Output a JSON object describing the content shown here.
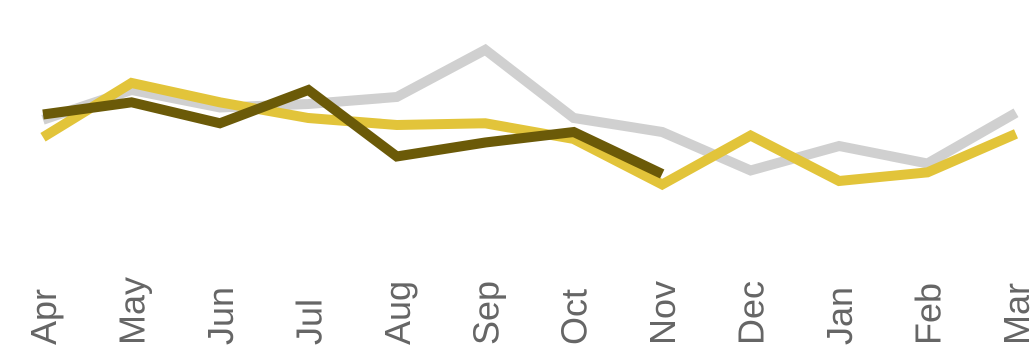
{
  "chart_data": {
    "type": "line",
    "categories": [
      "Apr",
      "May",
      "Jun",
      "Jul",
      "Aug",
      "Sep",
      "Oct",
      "Nov",
      "Dec",
      "Jan",
      "Feb",
      "Mar"
    ],
    "series": [
      {
        "color": "#d0d0d0",
        "values": [
          63,
          80,
          70,
          72,
          76,
          103,
          64,
          56,
          34,
          48,
          38,
          67
        ]
      },
      {
        "color": "#e2c43a",
        "values": [
          53,
          84,
          73,
          64,
          60,
          61,
          52,
          26,
          54,
          28,
          33,
          55
        ]
      },
      {
        "color": "#6b5a08",
        "values": [
          66,
          73,
          61,
          80,
          42,
          50,
          56,
          32,
          null,
          null,
          null,
          null
        ]
      }
    ],
    "ylim": [
      0,
      120
    ],
    "grid": false,
    "legend": "none",
    "title": "",
    "xlabel": "",
    "ylabel": ""
  }
}
